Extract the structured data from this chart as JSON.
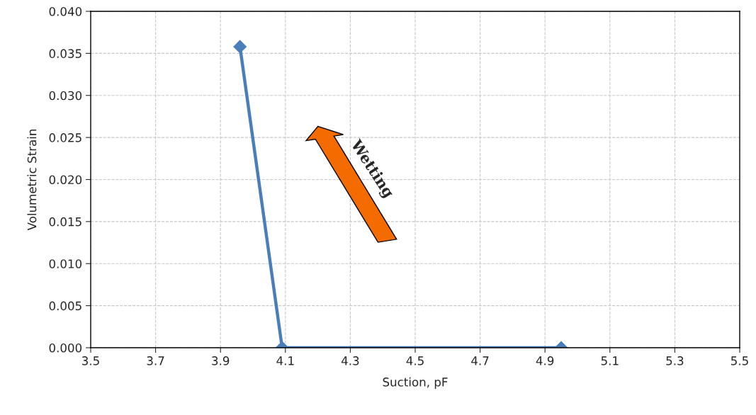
{
  "chart_data": {
    "type": "line",
    "xlabel": "Suction, pF",
    "ylabel": "Volumetric Strain",
    "x": [
      3.96,
      4.09,
      4.95
    ],
    "series": [
      {
        "color": "#4a7ebb",
        "values": [
          0.0358,
          0.0,
          0.0
        ]
      }
    ],
    "xlim": [
      3.5,
      5.5
    ],
    "xticks": [
      3.5,
      3.7,
      3.9,
      4.1,
      4.3,
      4.5,
      4.7,
      4.9,
      5.1,
      5.3,
      5.5
    ],
    "ylim": [
      0,
      0.04
    ],
    "yticks": [
      {
        "value": 0,
        "label": "0.000"
      },
      {
        "value": 0.005,
        "label": "0.005"
      },
      {
        "value": 0.01,
        "label": "0.010"
      },
      {
        "value": 0.015,
        "label": "0.015"
      },
      {
        "value": 0.02,
        "label": "0.020"
      },
      {
        "value": 0.025,
        "label": "0.025"
      },
      {
        "value": 0.03,
        "label": "0.030"
      },
      {
        "value": 0.035,
        "label": "0.035"
      },
      {
        "value": 0.04,
        "label": "0.040"
      }
    ],
    "annotations": [
      "Wetting"
    ],
    "grid": true,
    "marker": "diamond",
    "line_style": "solid",
    "legend": false
  }
}
